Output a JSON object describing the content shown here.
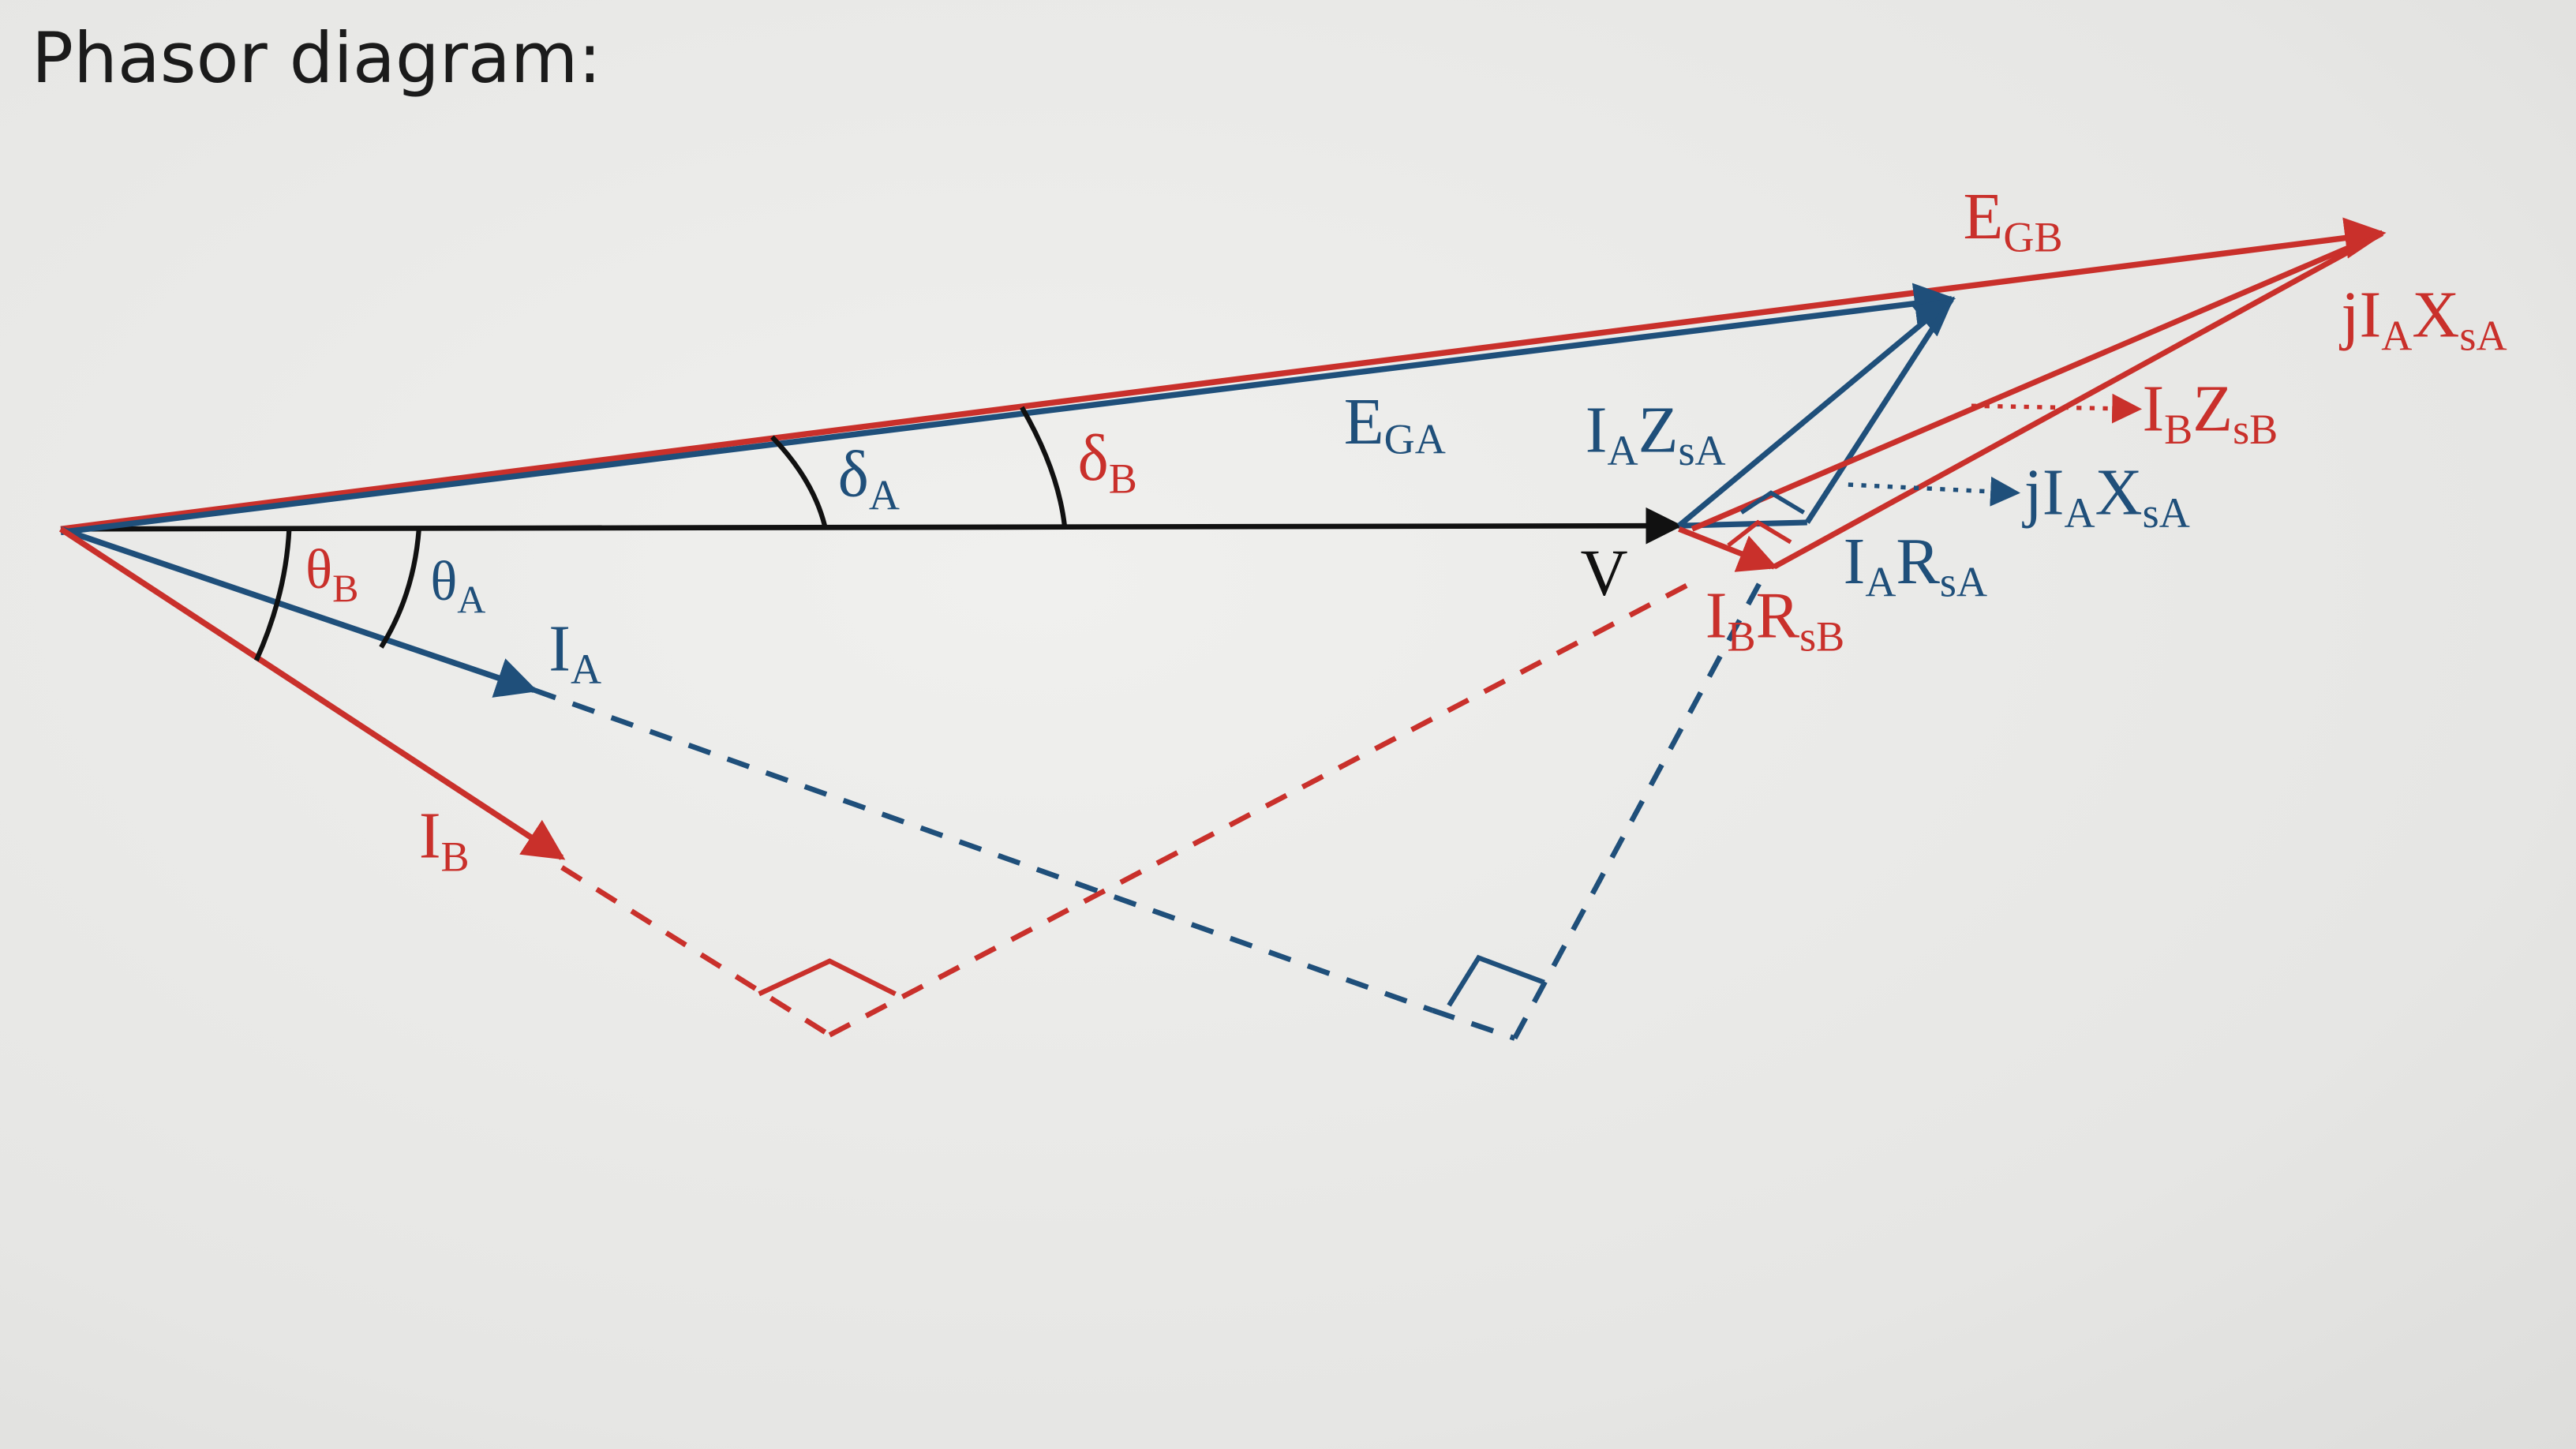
{
  "heading": "Phasor diagram:",
  "colors": {
    "red": "#c9302b",
    "blue": "#1f4f7a",
    "black": "#111111"
  },
  "labels": {
    "e_gb": {
      "main": "E",
      "sub": "GB"
    },
    "e_ga": {
      "main": "E",
      "sub": "GA"
    },
    "v": {
      "main": "V"
    },
    "i_a": {
      "main": "I",
      "sub": "A"
    },
    "i_b": {
      "main": "I",
      "sub": "B"
    },
    "delta_a": {
      "main": "δ",
      "sub": "A"
    },
    "delta_b": {
      "main": "δ",
      "sub": "B"
    },
    "theta_a": {
      "main": "θ",
      "sub": "A"
    },
    "theta_b": {
      "main": "θ",
      "sub": "B"
    },
    "ia_zsa": {
      "p1": "I",
      "s1": "A",
      "p2": "Z",
      "s2": "sA"
    },
    "ia_rsa": {
      "p1": "I",
      "s1": "A",
      "p2": "R",
      "s2": "sA"
    },
    "ib_rsb": {
      "p1": "I",
      "s1": "B",
      "p2": "R",
      "s2": "sB"
    },
    "ib_zsb": {
      "p1": "I",
      "s1": "B",
      "p2": "Z",
      "s2": "sB"
    },
    "jia_xsa_red": {
      "p0": "j",
      "p1": "I",
      "s1": "A",
      "p2": "X",
      "s2": "sA"
    },
    "jia_xsa_blue": {
      "p0": "j",
      "p1": "I",
      "s1": "A",
      "p2": "X",
      "s2": "sA"
    }
  }
}
